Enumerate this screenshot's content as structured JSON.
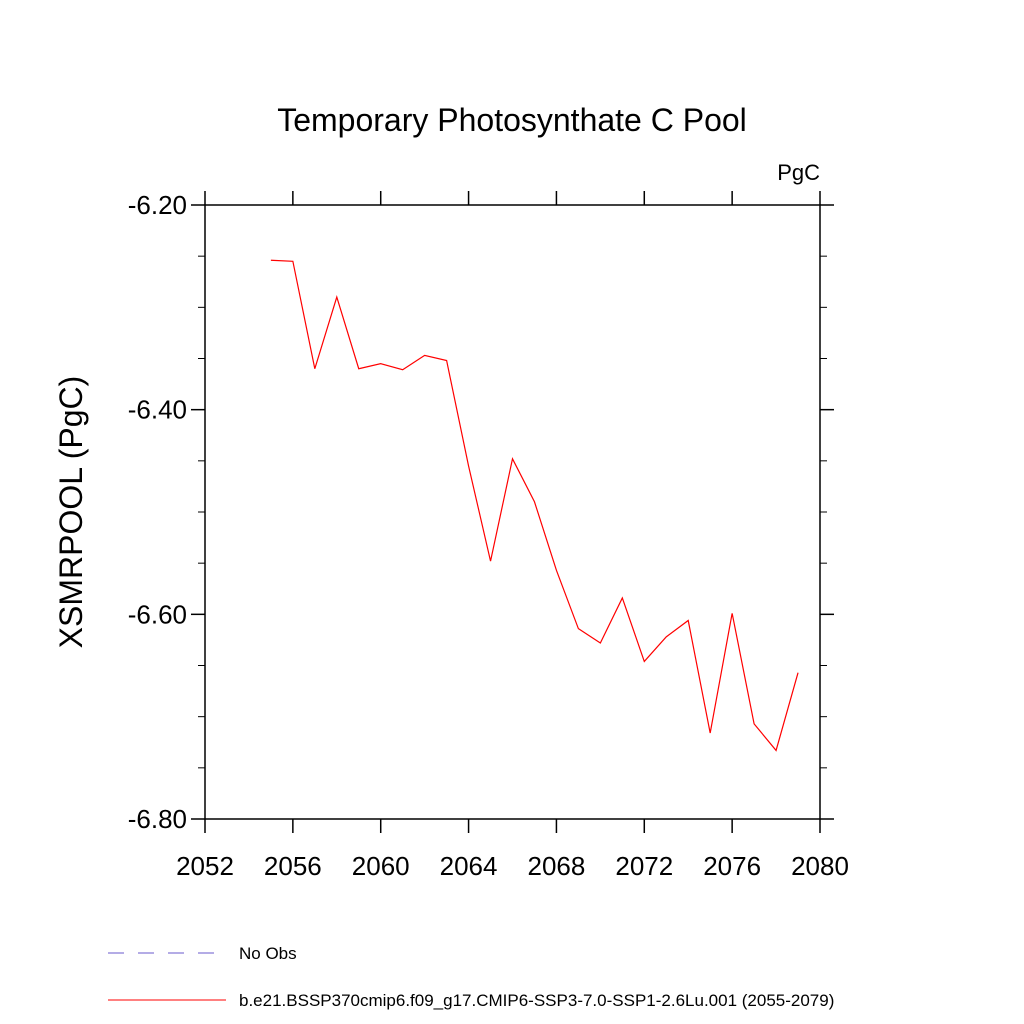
{
  "chart_data": {
    "type": "line",
    "title": "Temporary Photosynthate C Pool",
    "units_label": "PgC",
    "ylabel": "XSMRPOOL  (PgC)",
    "xlabel": "",
    "xlim": [
      2052,
      2080
    ],
    "ylim": [
      -6.8,
      -6.2
    ],
    "x_ticks": [
      2052,
      2056,
      2060,
      2064,
      2068,
      2072,
      2076,
      2080
    ],
    "x_tick_labels": [
      "2052",
      "2056",
      "2060",
      "2064",
      "2068",
      "2072",
      "2076",
      "2080"
    ],
    "y_ticks": [
      -6.8,
      -6.6,
      -6.4,
      -6.2
    ],
    "y_tick_labels": [
      "-6.80",
      "-6.60",
      "-6.40",
      "-6.20"
    ],
    "y_minor_step": 0.05,
    "x_minor_step": 1,
    "grid": false,
    "legend_position": "bottom",
    "series": [
      {
        "name": "b.e21.BSSP370cmip6.f09_g17.CMIP6-SSP3-7.0-SSP1-2.6Lu.001 (2055-2079)",
        "color": "#ff0000",
        "dash": "solid",
        "x": [
          2055,
          2056,
          2057,
          2058,
          2059,
          2060,
          2061,
          2062,
          2063,
          2064,
          2065,
          2066,
          2067,
          2068,
          2069,
          2070,
          2071,
          2072,
          2073,
          2074,
          2075,
          2076,
          2077,
          2078,
          2079
        ],
        "values": [
          -6.254,
          -6.255,
          -6.36,
          -6.29,
          -6.36,
          -6.355,
          -6.361,
          -6.347,
          -6.352,
          -6.455,
          -6.548,
          -6.448,
          -6.49,
          -6.557,
          -6.614,
          -6.628,
          -6.584,
          -6.646,
          -6.622,
          -6.606,
          -6.716,
          -6.599,
          -6.707,
          -6.733,
          -6.657
        ]
      }
    ],
    "legend": [
      {
        "label": "No Obs",
        "color": "#6a5acd",
        "dash": "dashed"
      },
      {
        "label": "b.e21.BSSP370cmip6.f09_g17.CMIP6-SSP3-7.0-SSP1-2.6Lu.001 (2055-2079)",
        "color": "#ff0000",
        "dash": "solid"
      }
    ]
  }
}
